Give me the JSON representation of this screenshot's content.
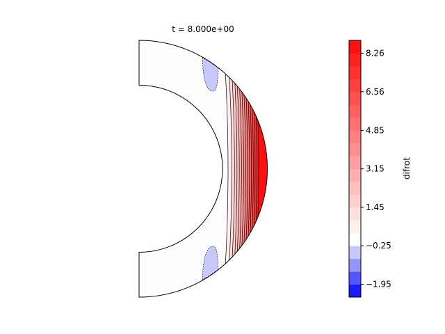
{
  "chart_data": {
    "type": "contour",
    "title": "t = 8.000e+00",
    "colorbar": {
      "label": "difrot",
      "ticks": [
        "8.26",
        "6.56",
        "4.85",
        "3.15",
        "1.45",
        "−0.25",
        "−1.95"
      ],
      "tick_values": [
        8.26,
        6.56,
        4.85,
        3.15,
        1.45,
        -0.25,
        -1.95
      ],
      "range": [
        -2.52,
        8.83
      ],
      "n_levels": 20,
      "colormap": "blue-white-red"
    },
    "domain_shape": "meridional half annulus",
    "field_description": {
      "max_value_region": "outer equator",
      "negative_regions": "two small patches near the outer boundary at mid latitudes"
    },
    "colors": {
      "positive": "#ff0000",
      "negative": "#1a1aff",
      "neutral": "#ffffff",
      "negative_patch": "#c8c8ff"
    }
  }
}
